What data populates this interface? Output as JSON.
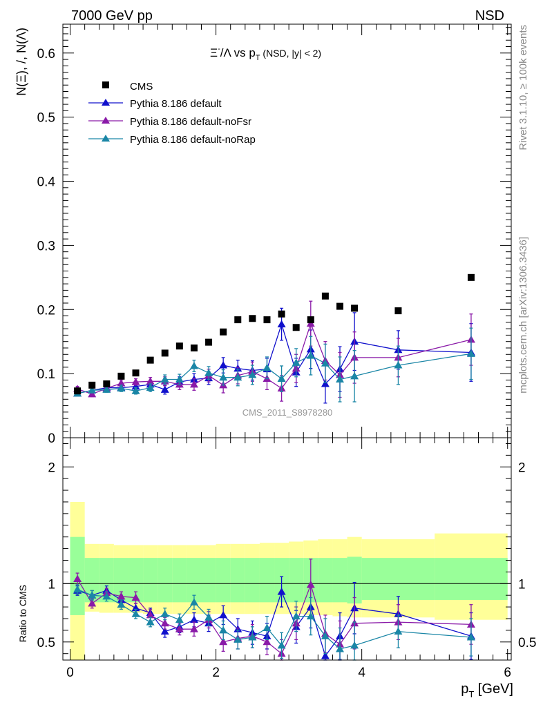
{
  "header": {
    "left": "7000 GeV pp",
    "right": "NSD"
  },
  "side_labels": {
    "rivet": "Rivet 3.1.10, ≥ 100k events",
    "mcplots": "mcplots.cern.ch [arXiv:1306.3436]"
  },
  "watermark": "CMS_2011_S8978280",
  "chart_data": [
    {
      "type": "scatter",
      "panel": "main",
      "title": "Ξ⁻/Λ  vs pT (NSD, |y| < 2)",
      "title_main": "Ξ",
      "title_sup": "-",
      "title_after": "/Λ  vs p",
      "title_sub": "T",
      "title_paren": " (NSD, |y| < 2)",
      "ylabel": "N(Ξ), /, N(Λ)",
      "xlim": [
        -0.1,
        6.05
      ],
      "ylim": [
        0,
        0.645
      ],
      "yticks": [
        0,
        0.1,
        0.2,
        0.3,
        0.4,
        0.5,
        0.6
      ],
      "ytick_labels": [
        "0",
        "0.1",
        "0.2",
        "0.3",
        "0.4",
        "0.5",
        "0.6"
      ],
      "legend_position": "top-left",
      "legend": [
        "CMS",
        "Pythia 8.186 default",
        "Pythia 8.186 default-noFsr",
        "Pythia 8.186 default-noRap"
      ],
      "data": {
        "name": "CMS",
        "color": "#000000",
        "x": [
          0.1,
          0.3,
          0.5,
          0.7,
          0.9,
          1.1,
          1.3,
          1.5,
          1.7,
          1.9,
          2.1,
          2.3,
          2.5,
          2.7,
          2.9,
          3.1,
          3.3,
          3.5,
          3.7,
          3.9,
          4.5,
          5.5
        ],
        "y": [
          0.073,
          0.082,
          0.084,
          0.096,
          0.101,
          0.121,
          0.132,
          0.143,
          0.14,
          0.149,
          0.165,
          0.184,
          0.186,
          0.184,
          0.193,
          0.172,
          0.184,
          0.221,
          0.205,
          0.202,
          0.198,
          0.25
        ]
      },
      "series": [
        {
          "name": "Pythia 8.186 default",
          "color": "#1010cc",
          "x": [
            0.1,
            0.3,
            0.5,
            0.7,
            0.9,
            1.1,
            1.3,
            1.5,
            1.7,
            1.9,
            2.1,
            2.3,
            2.5,
            2.7,
            2.9,
            3.1,
            3.3,
            3.5,
            3.7,
            3.9,
            4.5,
            5.5
          ],
          "y": [
            0.069,
            0.074,
            0.078,
            0.078,
            0.08,
            0.083,
            0.075,
            0.087,
            0.091,
            0.093,
            0.113,
            0.108,
            0.105,
            0.107,
            0.177,
            0.102,
            0.138,
            0.084,
            0.107,
            0.15,
            0.137,
            0.133
          ],
          "err": [
            0.004,
            0.004,
            0.004,
            0.005,
            0.005,
            0.006,
            0.007,
            0.008,
            0.009,
            0.01,
            0.012,
            0.013,
            0.015,
            0.017,
            0.025,
            0.022,
            0.03,
            0.03,
            0.035,
            0.045,
            0.03,
            0.045
          ]
        },
        {
          "name": "Pythia 8.186 default-noFsr",
          "color": "#8a1aa8",
          "x": [
            0.1,
            0.3,
            0.5,
            0.7,
            0.9,
            1.1,
            1.3,
            1.5,
            1.7,
            1.9,
            2.1,
            2.3,
            2.5,
            2.7,
            2.9,
            3.1,
            3.3,
            3.5,
            3.7,
            3.9,
            4.5,
            5.5
          ],
          "y": [
            0.076,
            0.068,
            0.077,
            0.085,
            0.087,
            0.088,
            0.088,
            0.083,
            0.083,
            0.097,
            0.082,
            0.097,
            0.103,
            0.092,
            0.077,
            0.108,
            0.178,
            0.12,
            0.098,
            0.125,
            0.125,
            0.153
          ],
          "err": [
            0.004,
            0.004,
            0.004,
            0.005,
            0.005,
            0.006,
            0.007,
            0.008,
            0.009,
            0.01,
            0.012,
            0.013,
            0.015,
            0.017,
            0.02,
            0.022,
            0.035,
            0.03,
            0.035,
            0.04,
            0.03,
            0.04
          ]
        },
        {
          "name": "Pythia 8.186 default-noRap",
          "color": "#1a86a6",
          "x": [
            0.1,
            0.3,
            0.5,
            0.7,
            0.9,
            1.1,
            1.3,
            1.5,
            1.7,
            1.9,
            2.1,
            2.3,
            2.5,
            2.7,
            2.9,
            3.1,
            3.3,
            3.5,
            3.7,
            3.9,
            4.5,
            5.5
          ],
          "y": [
            0.069,
            0.074,
            0.075,
            0.077,
            0.073,
            0.078,
            0.091,
            0.091,
            0.112,
            0.101,
            0.094,
            0.094,
            0.098,
            0.109,
            0.092,
            0.117,
            0.128,
            0.116,
            0.091,
            0.096,
            0.113,
            0.131
          ],
          "err": [
            0.004,
            0.004,
            0.004,
            0.005,
            0.005,
            0.006,
            0.007,
            0.008,
            0.009,
            0.01,
            0.012,
            0.013,
            0.015,
            0.017,
            0.02,
            0.022,
            0.03,
            0.03,
            0.035,
            0.04,
            0.03,
            0.04
          ]
        }
      ]
    },
    {
      "type": "scatter",
      "panel": "ratio",
      "ylabel": "Ratio to CMS",
      "xlabel": "p",
      "xlabel_sub": "T",
      "xlabel_unit": " [GeV]",
      "xlim": [
        -0.1,
        6.05
      ],
      "ylim": [
        0.345,
        2.25
      ],
      "xticks": [
        0,
        2,
        4,
        6
      ],
      "xtick_labels": [
        "0",
        "2",
        "4",
        "6"
      ],
      "yticks": [
        0.5,
        1,
        2
      ],
      "ytick_labels": [
        "0.5",
        "1",
        "2"
      ],
      "bands": {
        "edges": [
          0,
          0.2,
          0.4,
          0.6,
          0.8,
          1.0,
          1.2,
          1.4,
          1.6,
          1.8,
          2.0,
          2.2,
          2.4,
          2.6,
          2.8,
          3.0,
          3.2,
          3.4,
          3.6,
          3.8,
          4.0,
          5.0,
          6.0
        ],
        "stat_lo": [
          0.73,
          0.84,
          0.84,
          0.84,
          0.84,
          0.84,
          0.84,
          0.84,
          0.84,
          0.84,
          0.84,
          0.84,
          0.84,
          0.84,
          0.84,
          0.84,
          0.84,
          0.84,
          0.84,
          0.83,
          0.86,
          0.86
        ],
        "stat_hi": [
          1.4,
          1.22,
          1.22,
          1.22,
          1.22,
          1.22,
          1.22,
          1.22,
          1.22,
          1.22,
          1.22,
          1.22,
          1.22,
          1.22,
          1.22,
          1.22,
          1.22,
          1.22,
          1.22,
          1.23,
          1.22,
          1.22
        ],
        "syst_lo": [
          0.0,
          0.76,
          0.75,
          0.75,
          0.75,
          0.74,
          0.74,
          0.74,
          0.74,
          0.74,
          0.74,
          0.74,
          0.74,
          0.74,
          0.74,
          0.74,
          0.73,
          0.73,
          0.72,
          0.71,
          0.71,
          0.69
        ],
        "syst_hi": [
          1.7,
          1.34,
          1.34,
          1.33,
          1.33,
          1.33,
          1.33,
          1.33,
          1.33,
          1.33,
          1.34,
          1.34,
          1.34,
          1.35,
          1.35,
          1.36,
          1.37,
          1.38,
          1.38,
          1.4,
          1.38,
          1.43
        ]
      },
      "series": [
        {
          "name": "Pythia 8.186 default",
          "color": "#1010cc",
          "x": [
            0.1,
            0.3,
            0.5,
            0.7,
            0.9,
            1.1,
            1.3,
            1.5,
            1.7,
            1.9,
            2.1,
            2.3,
            2.5,
            2.7,
            2.9,
            3.1,
            3.3,
            3.5,
            3.7,
            3.9,
            4.5,
            5.5
          ],
          "y": [
            0.94,
            0.9,
            0.94,
            0.86,
            0.79,
            0.75,
            0.59,
            0.63,
            0.69,
            0.66,
            0.73,
            0.61,
            0.58,
            0.55,
            0.93,
            0.63,
            0.8,
            0.38,
            0.55,
            0.79,
            0.74,
            0.55
          ],
          "err": [
            0.04,
            0.04,
            0.04,
            0.04,
            0.04,
            0.04,
            0.05,
            0.05,
            0.06,
            0.07,
            0.08,
            0.09,
            0.1,
            0.11,
            0.13,
            0.14,
            0.18,
            0.16,
            0.2,
            0.22,
            0.15,
            0.2
          ]
        },
        {
          "name": "Pythia 8.186 default-noFsr",
          "color": "#8a1aa8",
          "x": [
            0.1,
            0.3,
            0.5,
            0.7,
            0.9,
            1.1,
            1.3,
            1.5,
            1.7,
            1.9,
            2.1,
            2.3,
            2.5,
            2.7,
            2.9,
            3.1,
            3.3,
            3.5,
            3.7,
            3.9,
            4.5,
            5.5
          ],
          "y": [
            1.04,
            0.83,
            0.92,
            0.89,
            0.88,
            0.73,
            0.66,
            0.61,
            0.61,
            0.69,
            0.5,
            0.53,
            0.55,
            0.5,
            0.4,
            0.66,
            0.99,
            0.57,
            0.48,
            0.66,
            0.67,
            0.65
          ],
          "err": [
            0.05,
            0.04,
            0.04,
            0.04,
            0.05,
            0.05,
            0.05,
            0.05,
            0.06,
            0.07,
            0.08,
            0.09,
            0.1,
            0.11,
            0.12,
            0.14,
            0.22,
            0.16,
            0.2,
            0.22,
            0.15,
            0.17
          ]
        },
        {
          "name": "Pythia 8.186 default-noRap",
          "color": "#1a86a6",
          "x": [
            0.1,
            0.3,
            0.5,
            0.7,
            0.9,
            1.1,
            1.3,
            1.5,
            1.7,
            1.9,
            2.1,
            2.3,
            2.5,
            2.7,
            2.9,
            3.1,
            3.3,
            3.5,
            3.7,
            3.9,
            4.5,
            5.5
          ],
          "y": [
            0.95,
            0.9,
            0.89,
            0.82,
            0.74,
            0.67,
            0.74,
            0.69,
            0.84,
            0.71,
            0.6,
            0.52,
            0.54,
            0.62,
            0.47,
            0.72,
            0.72,
            0.55,
            0.44,
            0.47,
            0.59,
            0.54
          ],
          "err": [
            0.04,
            0.04,
            0.04,
            0.04,
            0.04,
            0.04,
            0.05,
            0.05,
            0.06,
            0.07,
            0.08,
            0.08,
            0.09,
            0.1,
            0.11,
            0.13,
            0.16,
            0.15,
            0.18,
            0.2,
            0.14,
            0.16
          ]
        }
      ]
    }
  ]
}
